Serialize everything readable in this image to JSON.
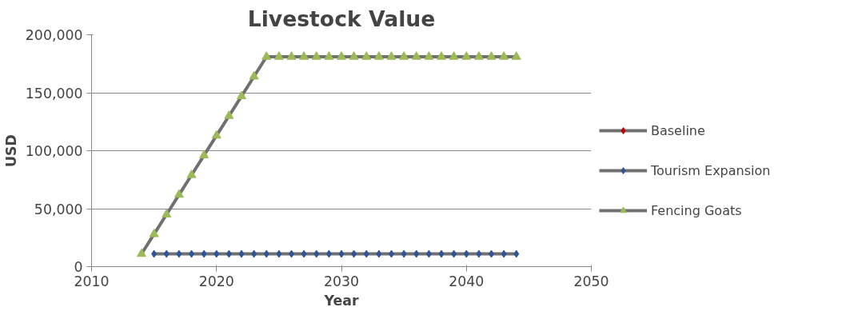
{
  "chart_data": {
    "type": "line",
    "title": "Livestock Value",
    "xlabel": "Year",
    "ylabel": "USD",
    "x": [
      2014,
      2015,
      2016,
      2017,
      2018,
      2019,
      2020,
      2021,
      2022,
      2023,
      2024,
      2025,
      2026,
      2027,
      2028,
      2029,
      2030,
      2031,
      2032,
      2033,
      2034,
      2035,
      2036,
      2037,
      2038,
      2039,
      2040,
      2041,
      2042,
      2043,
      2044
    ],
    "series": [
      {
        "name": "Baseline",
        "color": "#c00000",
        "marker": "diamond",
        "values": [
          null,
          null,
          null,
          null,
          null,
          null,
          null,
          null,
          null,
          null,
          null,
          null,
          null,
          null,
          null,
          null,
          null,
          null,
          null,
          null,
          null,
          null,
          null,
          null,
          null,
          null,
          null,
          null,
          null,
          null,
          null
        ]
      },
      {
        "name": "Tourism Expansion",
        "color": "#2f5597",
        "marker": "diamond",
        "values": [
          null,
          11000,
          11000,
          11000,
          11000,
          11000,
          11000,
          11000,
          11000,
          11000,
          11000,
          11000,
          11000,
          11000,
          11000,
          11000,
          11000,
          11000,
          11000,
          11000,
          11000,
          11000,
          11000,
          11000,
          11000,
          11000,
          11000,
          11000,
          11000,
          11000,
          11000
        ]
      },
      {
        "name": "Fencing Goats",
        "color": "#9bbb59",
        "marker": "triangle",
        "values": [
          11000,
          28000,
          45000,
          62000,
          79000,
          96000,
          113000,
          130000,
          147000,
          164000,
          181000,
          181000,
          181000,
          181000,
          181000,
          181000,
          181000,
          181000,
          181000,
          181000,
          181000,
          181000,
          181000,
          181000,
          181000,
          181000,
          181000,
          181000,
          181000,
          181000,
          181000
        ]
      }
    ],
    "xlim": [
      2010,
      2050
    ],
    "xticks": [
      2010,
      2020,
      2030,
      2040,
      2050
    ],
    "ylim": [
      0,
      200000
    ],
    "yticks": [
      {
        "value": 0,
        "label": "0"
      },
      {
        "value": 50000,
        "label": "50,000"
      },
      {
        "value": 100000,
        "label": "100,000"
      },
      {
        "value": 150000,
        "label": "150,000"
      },
      {
        "value": 200000,
        "label": "200,000"
      }
    ],
    "grid": "y",
    "legend": "right",
    "line_style": "solid"
  }
}
